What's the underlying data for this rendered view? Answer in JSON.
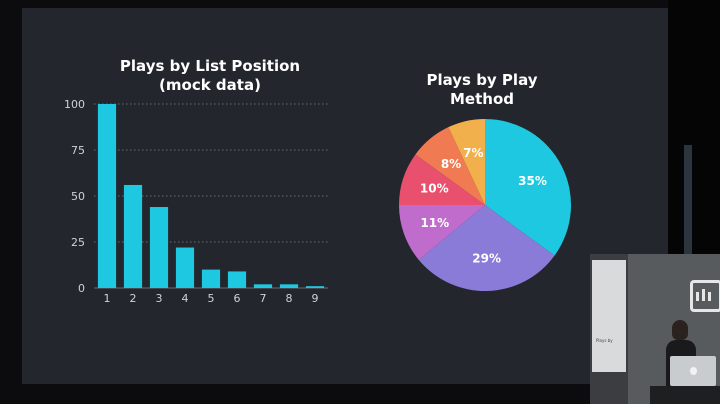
{
  "chart_data": [
    {
      "type": "bar",
      "title_line1": "Plays by List Position",
      "title_line2": "(mock data)",
      "categories": [
        "1",
        "2",
        "3",
        "4",
        "5",
        "6",
        "7",
        "8",
        "9"
      ],
      "values": [
        100,
        56,
        44,
        22,
        10,
        9,
        2,
        2,
        1
      ],
      "ylim": [
        0,
        100
      ],
      "yticks": [
        "0",
        "25",
        "50",
        "75",
        "100"
      ],
      "grid": "dotted horizontal",
      "bar_color": "#1ec8e0"
    },
    {
      "type": "pie",
      "title_line1": "Plays by Play",
      "title_line2": "Method",
      "slices": [
        {
          "label": "35%",
          "value": 35,
          "color": "#1ec8e0"
        },
        {
          "label": "29%",
          "value": 29,
          "color": "#8a7bd8"
        },
        {
          "label": "11%",
          "value": 11,
          "color": "#c06ccc"
        },
        {
          "label": "10%",
          "value": 10,
          "color": "#e8506e"
        },
        {
          "label": "8%",
          "value": 8,
          "color": "#f07a52"
        },
        {
          "label": "7%",
          "value": 7,
          "color": "#f2b04c"
        }
      ]
    }
  ],
  "colors": {
    "slide_background": "#23262c",
    "text": "#ffffff",
    "axis_text": "#cfd2d6"
  },
  "presenter_inset": {
    "screen_text": "Plays by"
  }
}
